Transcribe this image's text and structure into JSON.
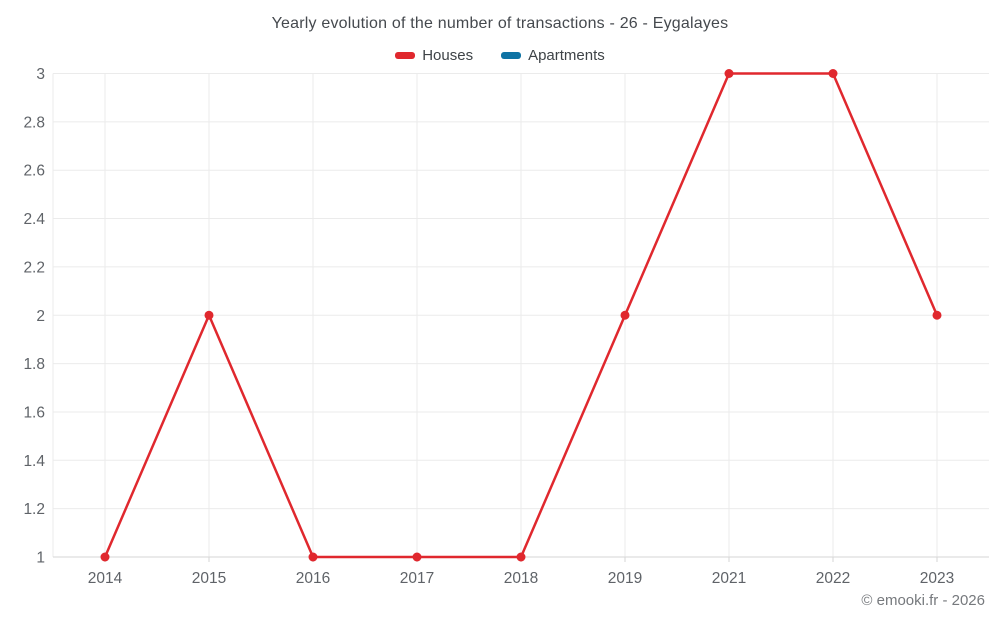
{
  "footer": {
    "copyright": "© emooki.fr - 2026"
  },
  "colors": {
    "houses": "#e0282e",
    "apartments": "#0e73a4",
    "grid_line": "#ebebeb",
    "axis_line": "#d6d6d6",
    "axis_label": "#5f6368",
    "title_text": "#45494e"
  },
  "chart_data": {
    "type": "line",
    "title": "Yearly evolution of the number of transactions - 26 - Eygalayes",
    "xlabel": "",
    "ylabel": "",
    "categories": [
      "2014",
      "2015",
      "2016",
      "2017",
      "2018",
      "2019",
      "2021",
      "2022",
      "2023"
    ],
    "series": [
      {
        "name": "Houses",
        "color": "#e0282e",
        "values": [
          1,
          2,
          1,
          1,
          1,
          2,
          3,
          3,
          2
        ]
      },
      {
        "name": "Apartments",
        "color": "#0e73a4",
        "values": []
      }
    ],
    "ylim": [
      1,
      3
    ],
    "yticks": [
      1,
      1.2,
      1.4,
      1.6,
      1.8,
      2,
      2.2,
      2.4,
      2.6,
      2.8,
      3
    ],
    "grid": true,
    "legend_position": "top",
    "marker_radius": 4.5,
    "line_width": 2.5
  }
}
